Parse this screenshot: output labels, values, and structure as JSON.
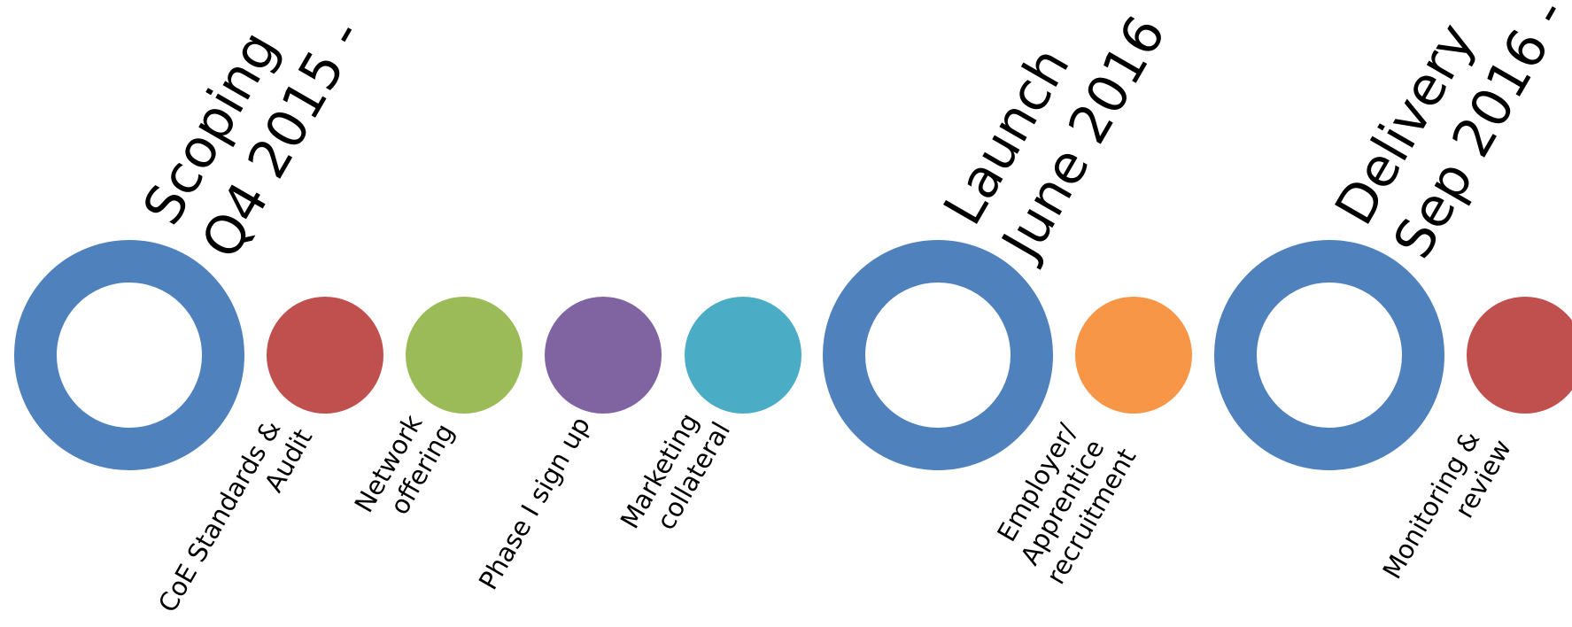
{
  "milestones": [
    {
      "line1": "Scoping",
      "line2": "Q4 2015 -",
      "color": "#4F81BD"
    },
    {
      "line1": "Launch",
      "line2": "June 2016",
      "color": "#4F81BD"
    },
    {
      "line1": "Delivery",
      "line2": "Sep 2016 -",
      "color": "#4F81BD"
    }
  ],
  "steps": [
    {
      "lines": [
        "CoE Standards &",
        "Audit"
      ],
      "color": "#C0504D"
    },
    {
      "lines": [
        "Network",
        "offering"
      ],
      "color": "#9BBB59"
    },
    {
      "lines": [
        "Phase I sign up"
      ],
      "color": "#8064A2"
    },
    {
      "lines": [
        "Marketing",
        "collateral"
      ],
      "color": "#4BACC6"
    },
    {
      "lines": [
        "Employer/",
        "Apprentice",
        "recruitment"
      ],
      "color": "#F79646"
    },
    {
      "lines": [
        "Monitoring &",
        "review"
      ],
      "color": "#C0504D"
    }
  ]
}
